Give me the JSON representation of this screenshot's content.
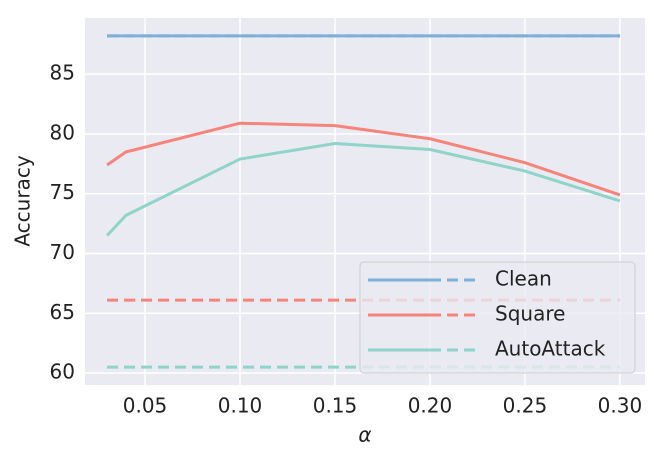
{
  "chart_data": {
    "type": "line",
    "xlabel": "α",
    "ylabel": "Accuracy",
    "x": [
      0.03,
      0.04,
      0.1,
      0.15,
      0.2,
      0.25,
      0.3
    ],
    "series": [
      {
        "name": "Clean",
        "color": "#7eb0d5",
        "values": [
          88.2,
          88.2,
          88.2,
          88.2,
          88.2,
          88.2,
          88.2
        ],
        "baseline": 88.2
      },
      {
        "name": "Square",
        "color": "#f5847a",
        "values": [
          77.4,
          78.5,
          80.9,
          80.7,
          79.6,
          77.6,
          74.9
        ],
        "baseline": 66.1
      },
      {
        "name": "AutoAttack",
        "color": "#8fd4c8",
        "values": [
          71.5,
          73.2,
          77.9,
          79.2,
          78.7,
          76.9,
          74.4
        ],
        "baseline": 60.5
      }
    ],
    "xlim": [
      0.0184,
      0.3132
    ],
    "ylim": [
      59.0,
      89.7
    ],
    "xticks": [
      0.05,
      {
        "value": 0.1,
        "label": "0.10"
      },
      0.15,
      {
        "value": 0.2,
        "label": "0.20"
      },
      0.25,
      {
        "value": 0.3,
        "label": "0.30"
      }
    ],
    "yticks": [
      60,
      65,
      70,
      75,
      80,
      85
    ],
    "grid": true,
    "legend": "lower right"
  }
}
